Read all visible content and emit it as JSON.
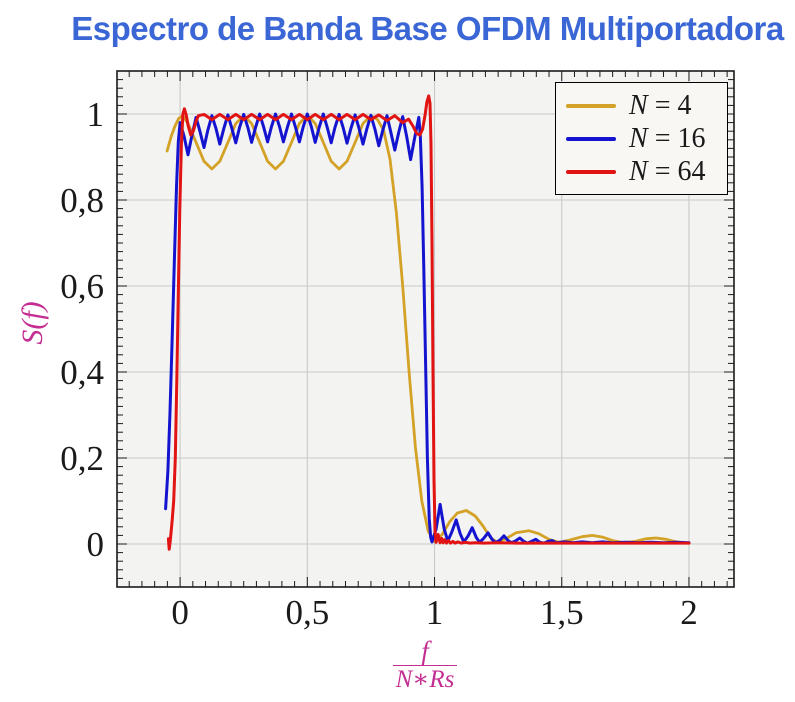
{
  "title": {
    "text": "Espectro de Banda Base OFDM Multiportadora"
  },
  "theme": {
    "page_bg": "#ffffff",
    "plot_bg": "#f3f3f1",
    "grid_color": "#c9c9c9",
    "axis_color": "#1a1a1a",
    "tick_label_color": "#1a1a1a",
    "title_color": "#3b67d6",
    "axis_label_color": "#c42e92",
    "legend_bg": "#f8f7f4",
    "legend_border": "#000000"
  },
  "chart_data": {
    "type": "line",
    "title": "Espectro de Banda Base OFDM Multiportadora",
    "ylabel": "S(f)",
    "xlabel": {
      "numerator": "f",
      "denominator": "N∗Rs"
    },
    "xlim": [
      -0.248,
      2.177
    ],
    "ylim": [
      -0.1,
      1.1
    ],
    "grid": true,
    "legend_position": "top-right",
    "x_major_ticks": [
      0,
      0.5,
      1,
      1.5,
      2
    ],
    "x_tick_labels": [
      "0",
      "0,5",
      "1",
      "1,5",
      "2"
    ],
    "y_major_ticks": [
      0,
      0.2,
      0.4,
      0.6,
      0.8,
      1
    ],
    "y_tick_labels": [
      "0",
      "0,2",
      "0,4",
      "0,6",
      "0,8",
      "1"
    ],
    "x_minor_step": 0.05,
    "y_minor_step": 0.02,
    "series": [
      {
        "id": "n4",
        "label": "N = 4",
        "label_var": "N",
        "label_eq": " = 4",
        "color": "#d3a226",
        "width": 2.8,
        "points": [
          [
            -0.051,
            0.914
          ],
          [
            -0.035,
            0.948
          ],
          [
            -0.02,
            0.972
          ],
          [
            -0.005,
            0.99
          ],
          [
            0.01,
            0.996
          ],
          [
            0.031,
            0.978
          ],
          [
            0.063,
            0.934
          ],
          [
            0.094,
            0.89
          ],
          [
            0.125,
            0.872
          ],
          [
            0.156,
            0.89
          ],
          [
            0.188,
            0.934
          ],
          [
            0.219,
            0.978
          ],
          [
            0.25,
            0.996
          ],
          [
            0.281,
            0.978
          ],
          [
            0.313,
            0.934
          ],
          [
            0.344,
            0.89
          ],
          [
            0.375,
            0.872
          ],
          [
            0.406,
            0.89
          ],
          [
            0.438,
            0.934
          ],
          [
            0.469,
            0.978
          ],
          [
            0.5,
            0.997
          ],
          [
            0.531,
            0.978
          ],
          [
            0.563,
            0.934
          ],
          [
            0.594,
            0.89
          ],
          [
            0.625,
            0.872
          ],
          [
            0.656,
            0.89
          ],
          [
            0.688,
            0.934
          ],
          [
            0.719,
            0.978
          ],
          [
            0.75,
            0.996
          ],
          [
            0.775,
            0.988
          ],
          [
            0.8,
            0.962
          ],
          [
            0.825,
            0.895
          ],
          [
            0.85,
            0.77
          ],
          [
            0.875,
            0.6
          ],
          [
            0.9,
            0.4
          ],
          [
            0.925,
            0.225
          ],
          [
            0.95,
            0.1
          ],
          [
            0.975,
            0.03
          ],
          [
            1.0,
            0.006
          ],
          [
            1.03,
            0.022
          ],
          [
            1.06,
            0.052
          ],
          [
            1.09,
            0.072
          ],
          [
            1.125,
            0.078
          ],
          [
            1.16,
            0.065
          ],
          [
            1.19,
            0.042
          ],
          [
            1.22,
            0.015
          ],
          [
            1.245,
            0.004
          ],
          [
            1.28,
            0.012
          ],
          [
            1.32,
            0.026
          ],
          [
            1.37,
            0.031
          ],
          [
            1.41,
            0.024
          ],
          [
            1.45,
            0.011
          ],
          [
            1.49,
            0.004
          ],
          [
            1.53,
            0.009
          ],
          [
            1.58,
            0.017
          ],
          [
            1.62,
            0.02
          ],
          [
            1.66,
            0.016
          ],
          [
            1.7,
            0.008
          ],
          [
            1.745,
            0.003
          ],
          [
            1.79,
            0.006
          ],
          [
            1.83,
            0.012
          ],
          [
            1.87,
            0.014
          ],
          [
            1.91,
            0.011
          ],
          [
            1.95,
            0.005
          ],
          [
            2.0,
            0.002
          ]
        ]
      },
      {
        "id": "n16",
        "label": "N = 16",
        "label_var": "N",
        "label_eq": " = 16",
        "color": "#1414d0",
        "width": 3,
        "points": [
          [
            -0.057,
            0.082
          ],
          [
            -0.048,
            0.17
          ],
          [
            -0.04,
            0.3
          ],
          [
            -0.031,
            0.48
          ],
          [
            -0.022,
            0.67
          ],
          [
            -0.014,
            0.83
          ],
          [
            -0.007,
            0.935
          ],
          [
            0.0,
            0.98
          ],
          [
            0.016,
            0.947
          ],
          [
            0.031,
            0.905
          ],
          [
            0.047,
            0.952
          ],
          [
            0.063,
            0.992
          ],
          [
            0.078,
            0.96
          ],
          [
            0.094,
            0.922
          ],
          [
            0.109,
            0.962
          ],
          [
            0.125,
            0.996
          ],
          [
            0.141,
            0.966
          ],
          [
            0.156,
            0.93
          ],
          [
            0.172,
            0.967
          ],
          [
            0.188,
            0.998
          ],
          [
            0.203,
            0.968
          ],
          [
            0.219,
            0.933
          ],
          [
            0.234,
            0.969
          ],
          [
            0.25,
            0.999
          ],
          [
            0.266,
            0.969
          ],
          [
            0.281,
            0.934
          ],
          [
            0.297,
            0.97
          ],
          [
            0.313,
            1.0
          ],
          [
            0.328,
            0.97
          ],
          [
            0.344,
            0.935
          ],
          [
            0.359,
            0.97
          ],
          [
            0.375,
            1.0
          ],
          [
            0.391,
            0.97
          ],
          [
            0.406,
            0.935
          ],
          [
            0.422,
            0.97
          ],
          [
            0.438,
            1.0
          ],
          [
            0.453,
            0.97
          ],
          [
            0.469,
            0.935
          ],
          [
            0.484,
            0.97
          ],
          [
            0.5,
            1.0
          ],
          [
            0.516,
            0.97
          ],
          [
            0.531,
            0.934
          ],
          [
            0.547,
            0.97
          ],
          [
            0.563,
            1.0
          ],
          [
            0.578,
            0.969
          ],
          [
            0.594,
            0.933
          ],
          [
            0.609,
            0.969
          ],
          [
            0.625,
            0.999
          ],
          [
            0.641,
            0.968
          ],
          [
            0.656,
            0.932
          ],
          [
            0.672,
            0.968
          ],
          [
            0.688,
            0.998
          ],
          [
            0.703,
            0.967
          ],
          [
            0.719,
            0.93
          ],
          [
            0.734,
            0.966
          ],
          [
            0.75,
            0.997
          ],
          [
            0.766,
            0.964
          ],
          [
            0.781,
            0.926
          ],
          [
            0.797,
            0.963
          ],
          [
            0.813,
            0.996
          ],
          [
            0.828,
            0.958
          ],
          [
            0.844,
            0.916
          ],
          [
            0.859,
            0.957
          ],
          [
            0.875,
            0.994
          ],
          [
            0.891,
            0.946
          ],
          [
            0.906,
            0.894
          ],
          [
            0.922,
            0.945
          ],
          [
            0.938,
            0.992
          ],
          [
            0.944,
            0.95
          ],
          [
            0.951,
            0.83
          ],
          [
            0.958,
            0.64
          ],
          [
            0.965,
            0.42
          ],
          [
            0.972,
            0.2
          ],
          [
            0.979,
            0.06
          ],
          [
            0.985,
            0.015
          ],
          [
            0.99,
            0.005
          ],
          [
            1.006,
            0.035
          ],
          [
            1.022,
            0.092
          ],
          [
            1.038,
            0.035
          ],
          [
            1.052,
            0.007
          ],
          [
            1.068,
            0.028
          ],
          [
            1.085,
            0.056
          ],
          [
            1.101,
            0.024
          ],
          [
            1.115,
            0.005
          ],
          [
            1.131,
            0.018
          ],
          [
            1.148,
            0.038
          ],
          [
            1.164,
            0.015
          ],
          [
            1.177,
            0.004
          ],
          [
            1.193,
            0.013
          ],
          [
            1.21,
            0.026
          ],
          [
            1.226,
            0.011
          ],
          [
            1.24,
            0.003
          ],
          [
            1.257,
            0.009
          ],
          [
            1.273,
            0.019
          ],
          [
            1.289,
            0.008
          ],
          [
            1.302,
            0.003
          ],
          [
            1.318,
            0.007
          ],
          [
            1.335,
            0.014
          ],
          [
            1.351,
            0.006
          ],
          [
            1.365,
            0.002
          ],
          [
            1.381,
            0.006
          ],
          [
            1.398,
            0.011
          ],
          [
            1.414,
            0.004
          ],
          [
            1.43,
            0.002
          ],
          [
            1.446,
            0.006
          ],
          [
            1.462,
            0.008
          ],
          [
            1.478,
            0.003
          ],
          [
            1.51,
            0.005
          ],
          [
            1.545,
            0.003
          ],
          [
            1.58,
            0.005
          ],
          [
            1.62,
            0.003
          ],
          [
            1.66,
            0.005
          ],
          [
            1.7,
            0.003
          ],
          [
            1.75,
            0.004
          ],
          [
            1.8,
            0.003
          ],
          [
            1.85,
            0.004
          ],
          [
            1.9,
            0.003
          ],
          [
            1.95,
            0.004
          ],
          [
            2.0,
            0.003
          ]
        ]
      },
      {
        "id": "n64",
        "label": "N = 64",
        "label_var": "N",
        "label_eq": " = 64",
        "color": "#e11313",
        "width": 3,
        "points": [
          [
            -0.046,
            0.012
          ],
          [
            -0.043,
            -0.012
          ],
          [
            -0.039,
            0.006
          ],
          [
            -0.032,
            0.05
          ],
          [
            -0.025,
            0.1
          ],
          [
            -0.019,
            0.2
          ],
          [
            -0.013,
            0.38
          ],
          [
            -0.007,
            0.58
          ],
          [
            -0.001,
            0.78
          ],
          [
            0.005,
            0.93
          ],
          [
            0.011,
            1.0
          ],
          [
            0.017,
            1.012
          ],
          [
            0.024,
            0.998
          ],
          [
            0.032,
            0.972
          ],
          [
            0.042,
            0.951
          ],
          [
            0.052,
            0.96
          ],
          [
            0.062,
            0.982
          ],
          [
            0.072,
            0.996
          ],
          [
            0.094,
            0.999
          ],
          [
            0.125,
            0.987
          ],
          [
            0.156,
            0.999
          ],
          [
            0.188,
            0.987
          ],
          [
            0.219,
            0.999
          ],
          [
            0.25,
            0.987
          ],
          [
            0.281,
            0.999
          ],
          [
            0.313,
            0.987
          ],
          [
            0.344,
            0.999
          ],
          [
            0.375,
            0.987
          ],
          [
            0.406,
            0.999
          ],
          [
            0.438,
            0.987
          ],
          [
            0.469,
            0.999
          ],
          [
            0.5,
            0.987
          ],
          [
            0.531,
            0.999
          ],
          [
            0.563,
            0.987
          ],
          [
            0.594,
            0.999
          ],
          [
            0.625,
            0.987
          ],
          [
            0.656,
            0.999
          ],
          [
            0.688,
            0.987
          ],
          [
            0.719,
            0.999
          ],
          [
            0.75,
            0.987
          ],
          [
            0.781,
            0.998
          ],
          [
            0.813,
            0.985
          ],
          [
            0.844,
            0.996
          ],
          [
            0.875,
            0.98
          ],
          [
            0.898,
            0.988
          ],
          [
            0.915,
            0.972
          ],
          [
            0.93,
            0.955
          ],
          [
            0.942,
            0.951
          ],
          [
            0.953,
            0.965
          ],
          [
            0.963,
            0.998
          ],
          [
            0.97,
            1.028
          ],
          [
            0.977,
            1.042
          ],
          [
            0.982,
            1.025
          ],
          [
            0.986,
            0.93
          ],
          [
            0.99,
            0.7
          ],
          [
            0.994,
            0.4
          ],
          [
            0.998,
            0.15
          ],
          [
            1.002,
            0.03
          ],
          [
            1.006,
            0.004
          ],
          [
            1.01,
            0.013
          ],
          [
            1.014,
            0.022
          ],
          [
            1.018,
            0.012
          ],
          [
            1.022,
            0.003
          ],
          [
            1.028,
            0.013
          ],
          [
            1.034,
            0.003
          ],
          [
            1.04,
            0.01
          ],
          [
            1.047,
            0.002
          ],
          [
            1.055,
            0.008
          ],
          [
            1.063,
            0.002
          ],
          [
            1.072,
            0.006
          ],
          [
            1.081,
            0.002
          ],
          [
            1.092,
            0.005
          ],
          [
            1.105,
            0.002
          ],
          [
            1.12,
            0.004
          ],
          [
            1.14,
            0.002
          ],
          [
            1.16,
            0.003
          ],
          [
            1.19,
            0.002
          ],
          [
            1.25,
            0.003
          ],
          [
            1.32,
            0.002
          ],
          [
            1.4,
            0.002
          ],
          [
            1.5,
            0.002
          ],
          [
            1.6,
            0.002
          ],
          [
            1.7,
            0.002
          ],
          [
            1.8,
            0.002
          ],
          [
            1.9,
            0.002
          ],
          [
            2.0,
            0.002
          ]
        ]
      }
    ]
  }
}
